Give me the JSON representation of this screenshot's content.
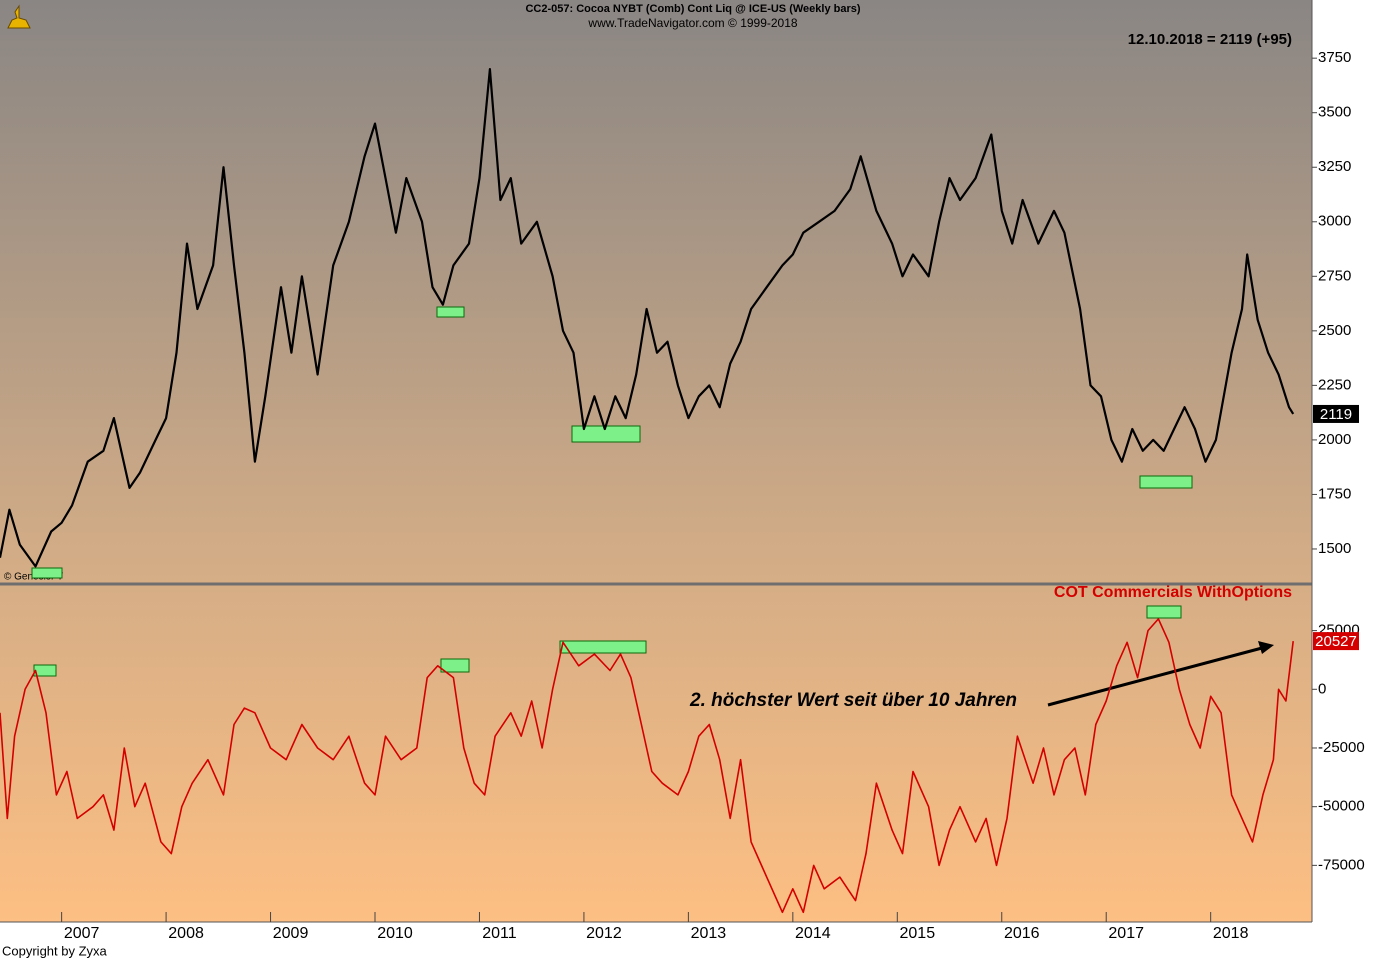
{
  "chart_data": [
    {
      "type": "line",
      "title": "CC2-057:  Cocoa NYBT (Comb) Cont Liq @ ICE-US  (Weekly bars)",
      "subtitle": "www.TradeNavigator.com © 1999-2018",
      "annotations": [
        "12.10.2018 = 2119 (+95)",
        "© GenesisFT"
      ],
      "xlim": [
        2006.41,
        2018.97
      ],
      "ylim": [
        1344,
        3925
      ],
      "yticks": [
        1500,
        1750,
        2000,
        2250,
        2500,
        2750,
        3000,
        3250,
        3500,
        3750
      ],
      "series": [
        {
          "color": "#000000",
          "x": [
            2006.41,
            2006.5,
            2006.6,
            2006.75,
            2006.9,
            2007.0,
            2007.1,
            2007.25,
            2007.4,
            2007.5,
            2007.65,
            2007.75,
            2007.9,
            2008.0,
            2008.1,
            2008.2,
            2008.3,
            2008.45,
            2008.55,
            2008.65,
            2008.75,
            2008.85,
            2008.95,
            2009.1,
            2009.2,
            2009.3,
            2009.45,
            2009.6,
            2009.75,
            2009.9,
            2010.0,
            2010.1,
            2010.2,
            2010.3,
            2010.45,
            2010.55,
            2010.65,
            2010.75,
            2010.9,
            2011.0,
            2011.1,
            2011.2,
            2011.3,
            2011.4,
            2011.55,
            2011.7,
            2011.8,
            2011.9,
            2012.0,
            2012.1,
            2012.2,
            2012.3,
            2012.4,
            2012.5,
            2012.6,
            2012.7,
            2012.8,
            2012.9,
            2013.0,
            2013.1,
            2013.2,
            2013.3,
            2013.4,
            2013.5,
            2013.6,
            2013.75,
            2013.9,
            2014.0,
            2014.1,
            2014.25,
            2014.4,
            2014.55,
            2014.65,
            2014.8,
            2014.95,
            2015.05,
            2015.15,
            2015.3,
            2015.4,
            2015.5,
            2015.6,
            2015.75,
            2015.9,
            2016.0,
            2016.1,
            2016.2,
            2016.35,
            2016.5,
            2016.6,
            2016.75,
            2016.85,
            2016.95,
            2017.05,
            2017.15,
            2017.25,
            2017.35,
            2017.45,
            2017.55,
            2017.65,
            2017.75,
            2017.85,
            2017.95,
            2018.05,
            2018.2,
            2018.3,
            2018.35,
            2018.45,
            2018.55,
            2018.65,
            2018.75,
            2018.79
          ],
          "values": [
            1460,
            1680,
            1520,
            1420,
            1580,
            1620,
            1700,
            1900,
            1950,
            2100,
            1780,
            1850,
            2000,
            2100,
            2400,
            2900,
            2600,
            2800,
            3250,
            2800,
            2400,
            1900,
            2200,
            2700,
            2400,
            2750,
            2300,
            2800,
            3000,
            3300,
            3450,
            3200,
            2950,
            3200,
            3000,
            2700,
            2620,
            2800,
            2900,
            3200,
            3700,
            3100,
            3200,
            2900,
            3000,
            2750,
            2500,
            2400,
            2050,
            2200,
            2050,
            2200,
            2100,
            2300,
            2600,
            2400,
            2450,
            2250,
            2100,
            2200,
            2250,
            2150,
            2350,
            2450,
            2600,
            2700,
            2800,
            2850,
            2950,
            3000,
            3050,
            3150,
            3300,
            3050,
            2900,
            2750,
            2850,
            2750,
            3000,
            3200,
            3100,
            3200,
            3400,
            3050,
            2900,
            3100,
            2900,
            3050,
            2950,
            2600,
            2250,
            2200,
            2000,
            1900,
            2050,
            1950,
            2000,
            1950,
            2050,
            2150,
            2050,
            1900,
            2000,
            2400,
            2600,
            2850,
            2550,
            2400,
            2300,
            2150,
            2119
          ]
        }
      ]
    },
    {
      "type": "line",
      "annotations": [
        "2. höchster Wert seit über 10 Jahren"
      ],
      "xlim": [
        2006.41,
        2018.97
      ],
      "ylim": [
        -98700,
        44000
      ],
      "xticks": [
        2007,
        2008,
        2009,
        2010,
        2011,
        2012,
        2013,
        2014,
        2015,
        2016,
        2017,
        2018
      ],
      "yticks": [
        -75000,
        -50000,
        -25000,
        0,
        25000
      ],
      "series": [
        {
          "name": "COT Commercials WithOptions",
          "color": "#d40000",
          "x": [
            2006.41,
            2006.48,
            2006.55,
            2006.65,
            2006.75,
            2006.85,
            2006.95,
            2007.05,
            2007.15,
            2007.3,
            2007.4,
            2007.5,
            2007.6,
            2007.7,
            2007.8,
            2007.95,
            2008.05,
            2008.15,
            2008.25,
            2008.4,
            2008.55,
            2008.65,
            2008.75,
            2008.85,
            2009.0,
            2009.15,
            2009.3,
            2009.45,
            2009.6,
            2009.75,
            2009.9,
            2010.0,
            2010.1,
            2010.25,
            2010.4,
            2010.5,
            2010.6,
            2010.75,
            2010.85,
            2010.95,
            2011.05,
            2011.15,
            2011.3,
            2011.4,
            2011.5,
            2011.6,
            2011.7,
            2011.8,
            2011.95,
            2012.1,
            2012.25,
            2012.35,
            2012.45,
            2012.55,
            2012.65,
            2012.75,
            2012.9,
            2013.0,
            2013.1,
            2013.2,
            2013.3,
            2013.4,
            2013.5,
            2013.6,
            2013.75,
            2013.9,
            2014.0,
            2014.1,
            2014.2,
            2014.3,
            2014.45,
            2014.6,
            2014.7,
            2014.8,
            2014.95,
            2015.05,
            2015.15,
            2015.3,
            2015.4,
            2015.5,
            2015.6,
            2015.75,
            2015.85,
            2015.95,
            2016.05,
            2016.15,
            2016.3,
            2016.4,
            2016.5,
            2016.6,
            2016.7,
            2016.8,
            2016.9,
            2017.0,
            2017.1,
            2017.2,
            2017.3,
            2017.4,
            2017.5,
            2017.6,
            2017.7,
            2017.8,
            2017.9,
            2018.0,
            2018.1,
            2018.2,
            2018.3,
            2018.4,
            2018.5,
            2018.6,
            2018.65,
            2018.72,
            2018.79
          ],
          "values": [
            -10000,
            -55000,
            -20000,
            0,
            8000,
            -10000,
            -45000,
            -35000,
            -55000,
            -50000,
            -45000,
            -60000,
            -25000,
            -50000,
            -40000,
            -65000,
            -70000,
            -50000,
            -40000,
            -30000,
            -45000,
            -15000,
            -8000,
            -10000,
            -25000,
            -30000,
            -15000,
            -25000,
            -30000,
            -20000,
            -40000,
            -45000,
            -20000,
            -30000,
            -25000,
            5000,
            10000,
            5000,
            -25000,
            -40000,
            -45000,
            -20000,
            -10000,
            -20000,
            -5000,
            -25000,
            0,
            20000,
            10000,
            15000,
            8000,
            15000,
            5000,
            -15000,
            -35000,
            -40000,
            -45000,
            -35000,
            -20000,
            -15000,
            -30000,
            -55000,
            -30000,
            -65000,
            -80000,
            -95000,
            -85000,
            -95000,
            -75000,
            -85000,
            -80000,
            -90000,
            -70000,
            -40000,
            -60000,
            -70000,
            -35000,
            -50000,
            -75000,
            -60000,
            -50000,
            -65000,
            -55000,
            -75000,
            -55000,
            -20000,
            -40000,
            -25000,
            -45000,
            -30000,
            -25000,
            -45000,
            -15000,
            -5000,
            10000,
            20000,
            5000,
            25000,
            30000,
            20000,
            0,
            -15000,
            -25000,
            -3000,
            -10000,
            -45000,
            -55000,
            -65000,
            -45000,
            -30000,
            0,
            -5000,
            20527
          ]
        }
      ]
    }
  ],
  "footer": "Copyright by Zyxa"
}
